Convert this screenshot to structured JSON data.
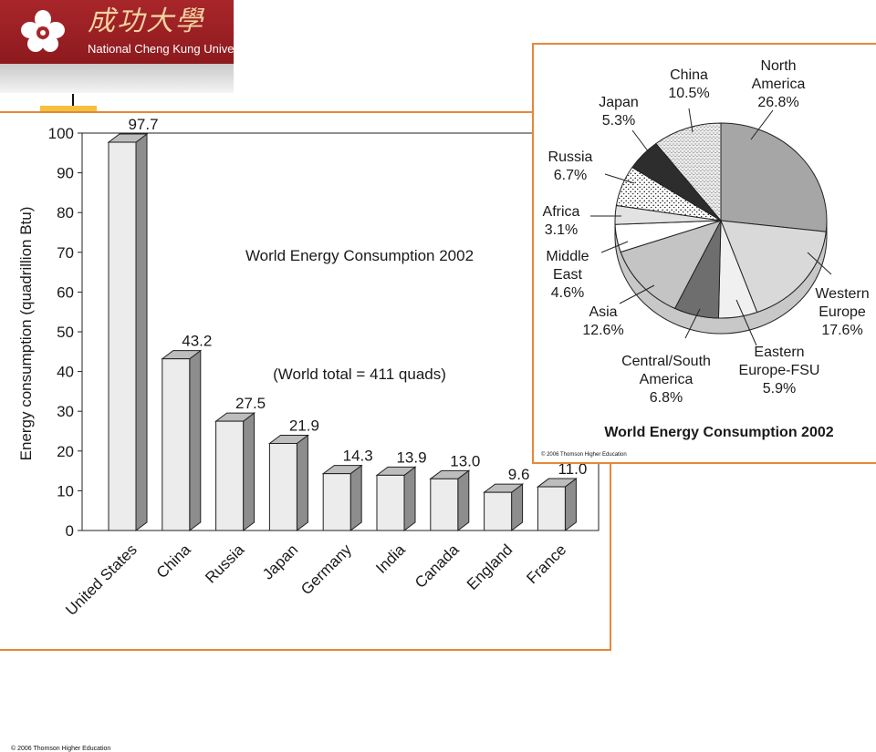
{
  "header": {
    "chinese_name": "成功大學",
    "english_name": "National Cheng Kung University",
    "colors": {
      "banner": "#a8262a",
      "accent_border": "#e5883a",
      "tab": "#f2c13e"
    }
  },
  "footer": {
    "copyright_left": "© 2006 Thomson Higher Education",
    "copyright_right": "© 2006 Thomson Higher Education"
  },
  "chart_data": [
    {
      "type": "bar",
      "title": "World Energy Consumption 2002",
      "annotation": "(World total = 411 quads)",
      "xlabel": "",
      "ylabel": "Energy consumption (quadrillion Btu)",
      "ylim": [
        0,
        100
      ],
      "yticks": [
        0,
        10,
        20,
        30,
        40,
        50,
        60,
        70,
        80,
        90,
        100
      ],
      "categories": [
        "United States",
        "China",
        "Russia",
        "Japan",
        "Germany",
        "India",
        "Canada",
        "England",
        "France"
      ],
      "values": [
        97.7,
        43.2,
        27.5,
        21.9,
        14.3,
        13.9,
        13.0,
        9.6,
        11.0
      ],
      "value_labels": [
        "97.7",
        "43.2",
        "27.5",
        "21.9",
        "14.3",
        "13.9",
        "13.0",
        "9.6",
        "11.0"
      ],
      "grid": false,
      "legend": "none"
    },
    {
      "type": "pie",
      "title": "World Energy Consumption 2002",
      "slices": [
        {
          "label": [
            "North",
            "America"
          ],
          "pct": "26.8%",
          "value": 26.8,
          "fill": "#a6a6a6"
        },
        {
          "label": [
            "Western",
            "Europe"
          ],
          "pct": "17.6%",
          "value": 17.6,
          "fill": "#d9d9d9"
        },
        {
          "label": [
            "Eastern",
            "Europe-FSU"
          ],
          "pct": "5.9%",
          "value": 5.9,
          "fill": "#f0f0f0"
        },
        {
          "label": [
            "Central/South",
            "America"
          ],
          "pct": "6.8%",
          "value": 6.8,
          "fill": "#6e6e6e"
        },
        {
          "label": [
            "Asia"
          ],
          "pct": "12.6%",
          "value": 12.6,
          "fill": "#c4c4c4"
        },
        {
          "label": [
            "Middle",
            "East"
          ],
          "pct": "4.6%",
          "value": 4.6,
          "fill": "#ffffff"
        },
        {
          "label": [
            "Africa"
          ],
          "pct": "3.1%",
          "value": 3.1,
          "fill": "#e2e2e2"
        },
        {
          "label": [
            "Russia"
          ],
          "pct": "6.7%",
          "value": 6.7,
          "fill": "url(#dots)"
        },
        {
          "label": [
            "Japan"
          ],
          "pct": "5.3%",
          "value": 5.3,
          "fill": "#2d2d2d"
        },
        {
          "label": [
            "China"
          ],
          "pct": "10.5%",
          "value": 10.5,
          "fill": "url(#speckle)"
        }
      ],
      "legend": "none"
    }
  ]
}
